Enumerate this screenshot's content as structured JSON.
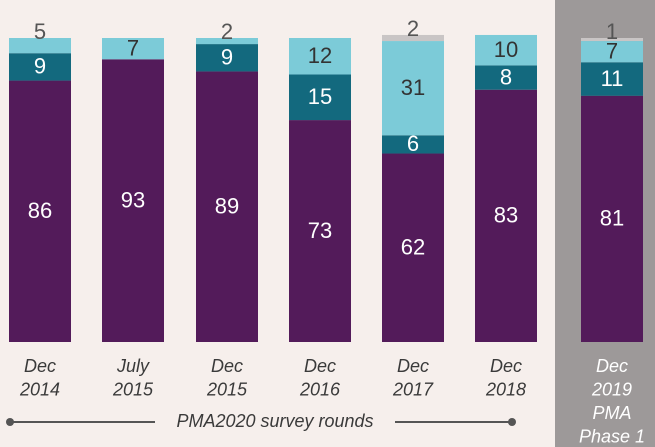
{
  "chart_data": {
    "type": "stacked-bar",
    "categories": [
      [
        "Dec",
        "2014"
      ],
      [
        "July",
        "2015"
      ],
      [
        "Dec",
        "2015"
      ],
      [
        "Dec",
        "2016"
      ],
      [
        "Dec",
        "2017"
      ],
      [
        "Dec",
        "2018"
      ],
      [
        "Dec",
        "2019",
        "PMA",
        "Phase 1"
      ]
    ],
    "series": [
      {
        "color": "#531b5a",
        "values": [
          86,
          93,
          89,
          73,
          62,
          83,
          81
        ]
      },
      {
        "color": "#13697e",
        "values": [
          9,
          null,
          9,
          15,
          6,
          8,
          11
        ]
      },
      {
        "color": "#7ccbd8",
        "values": [
          5,
          7,
          2,
          12,
          31,
          10,
          7
        ]
      },
      {
        "color": "#c9c5c5",
        "values": [
          null,
          null,
          null,
          null,
          2,
          null,
          1
        ]
      }
    ],
    "annotation": "PMA2020 survey rounds"
  }
}
